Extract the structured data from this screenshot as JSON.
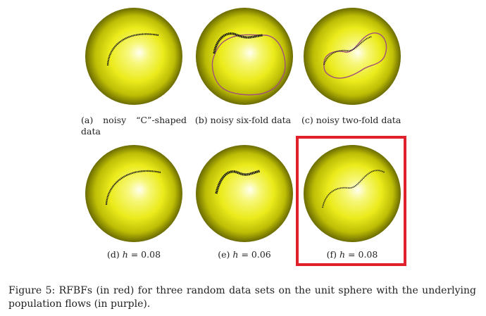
{
  "figure": {
    "panels": [
      {
        "id": "a",
        "label": "(a)",
        "caption_parts": [
          "(a)",
          "noisy",
          "“C”-shaped"
        ],
        "caption_line2": "data"
      },
      {
        "id": "b",
        "caption": "(b) noisy six-fold data"
      },
      {
        "id": "c",
        "caption": "(c) noisy two-fold data"
      },
      {
        "id": "d",
        "caption_prefix": "(d)",
        "caption_var": "h",
        "caption_suffix": " = 0.08"
      },
      {
        "id": "e",
        "caption_prefix": "(e)",
        "caption_var": "h",
        "caption_suffix": " = 0.06"
      },
      {
        "id": "f",
        "caption_prefix": "(f)",
        "caption_var": "h",
        "caption_suffix": " = 0.08",
        "highlighted": true
      }
    ],
    "caption": "Figure 5: RFBFs (in red) for three random data sets on the unit sphere with the underlying population flows (in purple).",
    "colors": {
      "sphere_light": "#fbfba0",
      "sphere_mid": "#ecec1e",
      "sphere_dark": "#6e6e00",
      "data_points": "#1a1a1a",
      "population_flow": "#a0507a",
      "highlight": "#e0202a"
    }
  }
}
